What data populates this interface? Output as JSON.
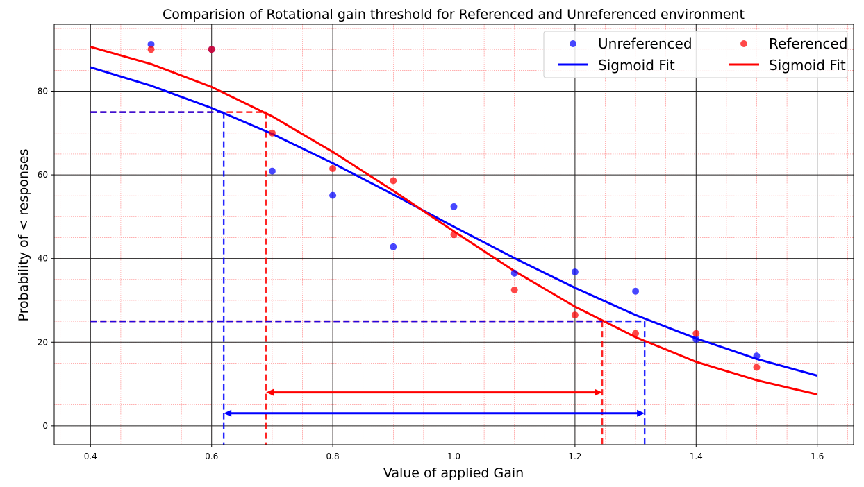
{
  "chart_data": {
    "type": "scatter",
    "title": "Comparision of Rotational gain threshold for Referenced and Unreferenced environment",
    "xlabel": "Value of applied Gain",
    "ylabel": "Probability of < responses",
    "xlim": [
      0.34,
      1.66
    ],
    "ylim": [
      -4.5,
      96
    ],
    "xticks": [
      "0.4",
      "0.6",
      "0.8",
      "1.0",
      "1.2",
      "1.4",
      "1.6"
    ],
    "yticks": [
      "0",
      "20",
      "40",
      "60",
      "80"
    ],
    "grid": {
      "major": true,
      "minor": true,
      "major_color": "#222222",
      "minor_color": "#ff8080"
    },
    "legend": {
      "placement": "top-right",
      "columns": 2
    },
    "series": [
      {
        "name": "Unreferenced",
        "kind": "points",
        "color": "#0000ff",
        "x": [
          0.5,
          0.6,
          0.7,
          0.8,
          0.9,
          1.0,
          1.1,
          1.2,
          1.3,
          1.4,
          1.5
        ],
        "y": [
          91.2,
          90.0,
          60.9,
          55.1,
          42.8,
          52.4,
          36.5,
          36.8,
          32.2,
          20.7,
          16.7
        ]
      },
      {
        "name": "Referenced",
        "kind": "points",
        "color": "#ff0000",
        "x": [
          0.5,
          0.6,
          0.7,
          0.8,
          0.9,
          1.0,
          1.1,
          1.2,
          1.3,
          1.4,
          1.5
        ],
        "y": [
          90.0,
          90.0,
          70.0,
          61.5,
          58.6,
          45.7,
          32.5,
          26.5,
          22.1,
          22.1,
          14.0
        ]
      },
      {
        "name": "Sigmoid Fit",
        "kind": "line",
        "color": "#0000ff",
        "x": [
          0.4,
          0.5,
          0.6,
          0.7,
          0.8,
          0.9,
          1.0,
          1.1,
          1.2,
          1.3,
          1.4,
          1.5,
          1.6
        ],
        "y": [
          85.7,
          81.3,
          76.0,
          69.8,
          62.8,
          55.3,
          47.6,
          40.1,
          33.0,
          26.5,
          20.9,
          16.0,
          12.0
        ]
      },
      {
        "name": "Sigmoid Fit",
        "kind": "line",
        "color": "#ff0000",
        "x": [
          0.4,
          0.5,
          0.6,
          0.7,
          0.8,
          0.9,
          1.0,
          1.1,
          1.2,
          1.3,
          1.4,
          1.5,
          1.6
        ],
        "y": [
          90.6,
          86.5,
          81.0,
          74.0,
          65.5,
          56.2,
          46.5,
          37.0,
          28.5,
          21.2,
          15.3,
          10.9,
          7.5
        ]
      }
    ],
    "threshold_lines": [
      {
        "color": "#ff0000",
        "y_levels": [
          75,
          25
        ],
        "x_low": 0.69,
        "x_high": 1.245,
        "x_start": 0.4
      },
      {
        "color": "#0000ff",
        "y_levels": [
          75,
          25
        ],
        "x_low": 0.62,
        "x_high": 1.315,
        "x_start": 0.4
      }
    ],
    "range_arrows": [
      {
        "color": "#ff0000",
        "x_from": 0.69,
        "x_to": 1.245,
        "y": 8
      },
      {
        "color": "#0000ff",
        "x_from": 0.62,
        "x_to": 1.315,
        "y": 3
      }
    ]
  }
}
